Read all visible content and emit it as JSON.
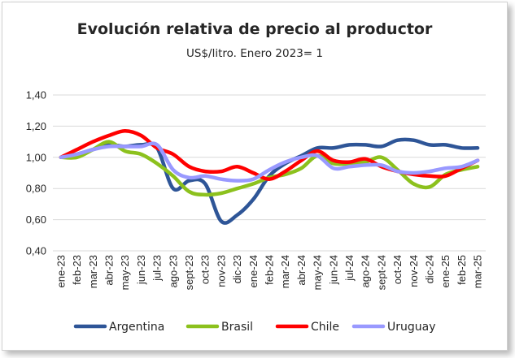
{
  "chart_data": {
    "type": "line",
    "title": "Evolución relativa de precio al productor",
    "subtitle": "US$/litro. Enero 2023= 1",
    "xlabel": "",
    "ylabel": "",
    "ylim": [
      0.4,
      1.4
    ],
    "yticks": [
      "0,40",
      "0,60",
      "0,80",
      "1,00",
      "1,20",
      "1,40"
    ],
    "grid": "horizontal",
    "legend_position": "bottom",
    "categories": [
      "ene-23",
      "feb-23",
      "mar-23",
      "abr-23",
      "may-23",
      "jun-23",
      "jul-23",
      "ago-23",
      "sept-23",
      "oct-23",
      "nov-23",
      "dic-23",
      "ene-24",
      "feb-24",
      "mar-24",
      "abr-24",
      "may-24",
      "jun-24",
      "jul-24",
      "ago-24",
      "sept-24",
      "oct-24",
      "nov-24",
      "dic-24",
      "ene-25",
      "feb-25",
      "mar-25"
    ],
    "series": [
      {
        "name": "Argentina",
        "color": "#2e5597",
        "values": [
          1.0,
          1.02,
          1.05,
          1.08,
          1.07,
          1.08,
          1.06,
          0.8,
          0.85,
          0.83,
          0.59,
          0.63,
          0.73,
          0.88,
          0.96,
          1.01,
          1.06,
          1.06,
          1.08,
          1.08,
          1.07,
          1.11,
          1.11,
          1.08,
          1.08,
          1.06,
          1.06
        ]
      },
      {
        "name": "Brasil",
        "color": "#8cc11d",
        "values": [
          1.0,
          1.0,
          1.05,
          1.1,
          1.04,
          1.02,
          0.96,
          0.88,
          0.78,
          0.76,
          0.77,
          0.8,
          0.83,
          0.87,
          0.89,
          0.93,
          1.01,
          0.96,
          0.96,
          0.97,
          1.0,
          0.92,
          0.83,
          0.81,
          0.89,
          0.92,
          0.94
        ]
      },
      {
        "name": "Chile",
        "color": "#ff0000",
        "values": [
          1.0,
          1.05,
          1.1,
          1.14,
          1.17,
          1.14,
          1.06,
          1.02,
          0.94,
          0.91,
          0.91,
          0.94,
          0.9,
          0.86,
          0.91,
          0.98,
          1.04,
          0.98,
          0.97,
          0.99,
          0.94,
          0.91,
          0.89,
          0.88,
          0.88,
          0.93,
          0.98
        ]
      },
      {
        "name": "Uruguay",
        "color": "#9999ff",
        "values": [
          1.0,
          1.02,
          1.05,
          1.07,
          1.07,
          1.07,
          1.08,
          0.92,
          0.87,
          0.88,
          0.86,
          0.85,
          0.86,
          0.92,
          0.97,
          1.0,
          1.01,
          0.93,
          0.94,
          0.95,
          0.95,
          0.91,
          0.9,
          0.91,
          0.93,
          0.94,
          0.98
        ]
      }
    ]
  }
}
